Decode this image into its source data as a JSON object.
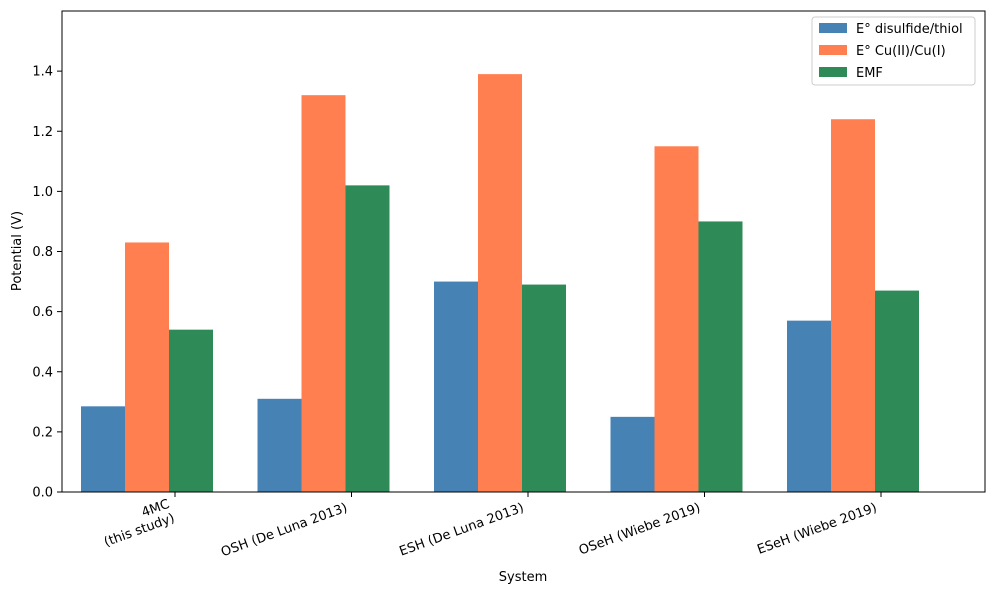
{
  "chart_data": {
    "type": "bar",
    "title": "",
    "xlabel": "System",
    "ylabel": "Potential (V)",
    "categories": [
      [
        "4MC",
        "(this study)"
      ],
      [
        "OSH (De Luna 2013)"
      ],
      [
        "ESH (De Luna 2013)"
      ],
      [
        "OSeH (Wiebe 2019)"
      ],
      [
        "ESeH (Wiebe 2019)"
      ]
    ],
    "ylim": [
      0,
      1.6
    ],
    "yticks": [
      0.0,
      0.2,
      0.4,
      0.6,
      0.8,
      1.0,
      1.2,
      1.4
    ],
    "ytick_labels": [
      "0.0",
      "0.2",
      "0.4",
      "0.6",
      "0.8",
      "1.0",
      "1.2",
      "1.4"
    ],
    "grid": false,
    "legend_position": "top-right",
    "series": [
      {
        "name": "E° disulfide/thiol",
        "color": "#4682b4",
        "values": [
          0.285,
          0.31,
          0.7,
          0.25,
          0.57
        ]
      },
      {
        "name": "E° Cu(II)/Cu(I)",
        "color": "#ff7f50",
        "values": [
          0.83,
          1.32,
          1.39,
          1.15,
          1.24
        ]
      },
      {
        "name": "EMF",
        "color": "#2e8b57",
        "values": [
          0.54,
          1.02,
          0.69,
          0.9,
          0.67
        ]
      }
    ]
  }
}
